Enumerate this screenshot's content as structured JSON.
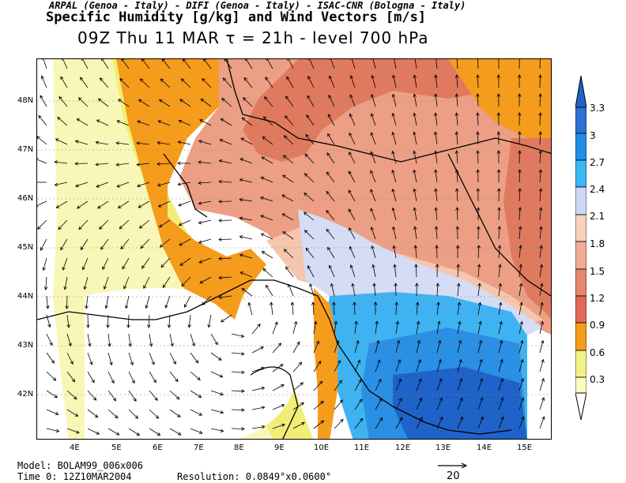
{
  "header": {
    "credits": "ARPAL (Genoa - Italy)  -  DIFI (Genoa - Italy)  -  ISAC-CNR (Bologna - Italy)",
    "title": "Specific Humidity [g/kg] and Wind Vectors [m/s]",
    "subtitle": "09Z Thu 11 MAR  τ = 21h  -  level 700 hPa"
  },
  "axes": {
    "lat_labels": [
      "48N",
      "47N",
      "46N",
      "45N",
      "44N",
      "43N",
      "42N"
    ],
    "lon_labels": [
      "4E",
      "5E",
      "6E",
      "7E",
      "8E",
      "9E",
      "10E",
      "11E",
      "12E",
      "13E",
      "14E",
      "15E"
    ]
  },
  "colorbar": {
    "labels": [
      "3.3",
      "3",
      "2.7",
      "2.4",
      "2.1",
      "1.8",
      "1.5",
      "1.2",
      "0.9",
      "0.6",
      "0.3"
    ],
    "colors": [
      "#2e6fd2",
      "#1f8fe6",
      "#3ab7f5",
      "#cfd8f5",
      "#f7d2bd",
      "#efad93",
      "#e8876e",
      "#e06a55",
      "#f59c1c",
      "#f4f18a",
      "#fbfbc4"
    ]
  },
  "footer": {
    "model": "Model: BOLAM99_006x006",
    "time0": "Time 0: 12Z10MAR2004",
    "resolution": "Resolution: 0.0849°x0.0600°",
    "reference_vector": "20"
  },
  "field_colors": {
    "white": "#ffffff",
    "pale_yellow": "#f9f7b7",
    "yellow": "#f1ee78",
    "orange": "#f59c1c",
    "salmon_dark": "#e07a5f",
    "salmon": "#ec9f84",
    "peach": "#f5c6ad",
    "lavender": "#d5dcf6",
    "light_blue": "#3fb3f1",
    "blue": "#2b8fe4",
    "dark_blue": "#1f63c8"
  }
}
